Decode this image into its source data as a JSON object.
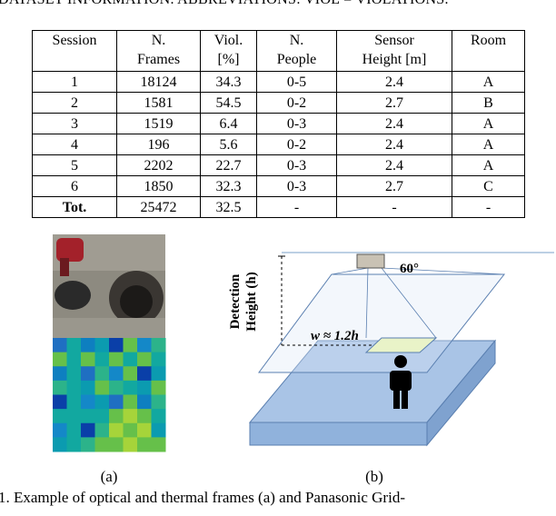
{
  "heading": "DATASET INFORMATION. ABBREVIATIONS: VIOL = VIOLATIONS.",
  "table": {
    "header": [
      [
        "Session"
      ],
      [
        "N.",
        "Frames"
      ],
      [
        "Viol.",
        "[%]"
      ],
      [
        "N.",
        "People"
      ],
      [
        "Sensor",
        "Height [m]"
      ],
      [
        "Room"
      ]
    ],
    "rows": [
      [
        "1",
        "18124",
        "34.3",
        "0-5",
        "2.4",
        "A"
      ],
      [
        "2",
        "1581",
        "54.5",
        "0-2",
        "2.7",
        "B"
      ],
      [
        "3",
        "1519",
        "6.4",
        "0-3",
        "2.4",
        "A"
      ],
      [
        "4",
        "196",
        "5.6",
        "0-2",
        "2.4",
        "A"
      ],
      [
        "5",
        "2202",
        "22.7",
        "0-3",
        "2.4",
        "A"
      ],
      [
        "6",
        "1850",
        "32.3",
        "0-3",
        "2.7",
        "C"
      ],
      [
        "Tot.",
        "25472",
        "32.5",
        "-",
        "-",
        "-"
      ]
    ]
  },
  "figure": {
    "label_a": "(a)",
    "label_b": "(b)",
    "detection_height": [
      "Detection",
      "Height (h)"
    ],
    "angle": "60°",
    "width": "w ≈ 1.2h"
  },
  "caption": "1.  Example of optical and thermal frames (a) and Panasonic Grid-"
}
